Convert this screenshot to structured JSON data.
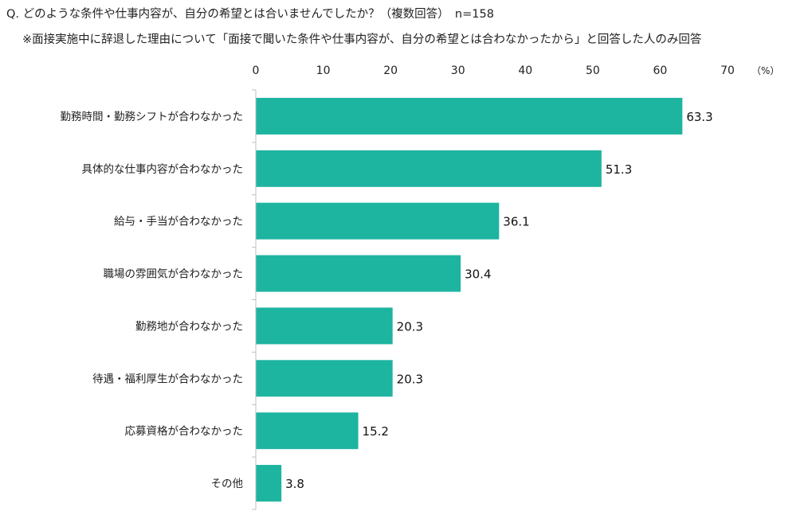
{
  "question": "Q. どのような条件や仕事内容が、自分の希望とは合いませんでしたか？（複数回答）　n=158",
  "note": "※面接実施中に辞退した理由について「面接で聞いた条件や仕事内容が、自分の希望とは合わなかったから」と回答した人のみ回答",
  "chart_data": {
    "type": "bar",
    "orientation": "horizontal",
    "categories": [
      "勤務時間・勤務シフトが合わなかった",
      "具体的な仕事内容が合わなかった",
      "給与・手当が合わなかった",
      "職場の雰囲気が合わなかった",
      "勤務地が合わなかった",
      "待遇・福利厚生が合わなかった",
      "応募資格が合わなかった",
      "その他"
    ],
    "values": [
      63.3,
      51.3,
      36.1,
      30.4,
      20.3,
      20.3,
      15.2,
      3.8
    ],
    "value_labels": [
      "63.3",
      "51.3",
      "36.1",
      "30.4",
      "20.3",
      "20.3",
      "15.2",
      "3.8"
    ],
    "xlim": [
      0,
      70
    ],
    "ticks": [
      0,
      10,
      20,
      30,
      40,
      50,
      60,
      70
    ],
    "tick_labels": [
      "0",
      "10",
      "20",
      "30",
      "40",
      "50",
      "60",
      "70"
    ],
    "unit_label": "（%）",
    "axis_position": "top",
    "grid": false,
    "bar_color": "#1db4a0"
  }
}
